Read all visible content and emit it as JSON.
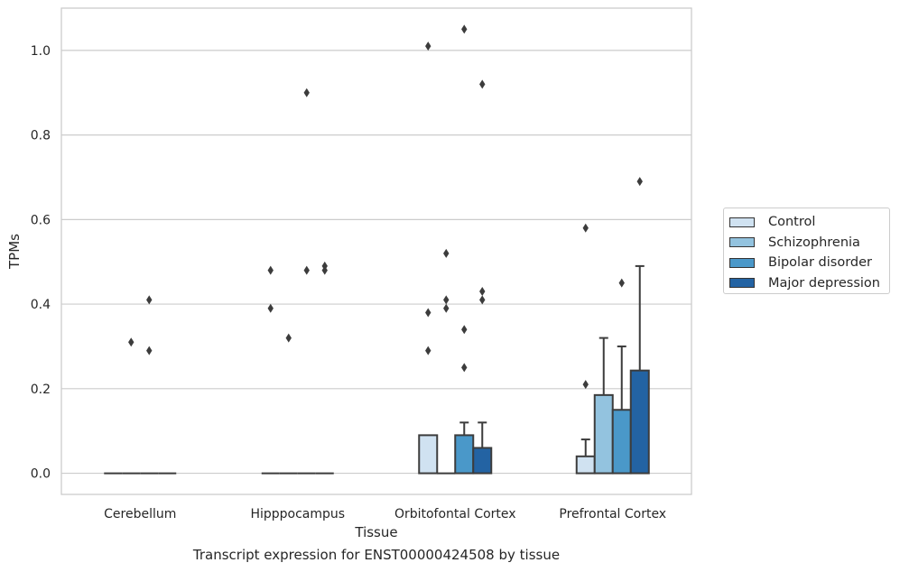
{
  "chart_data": {
    "type": "bar",
    "title": "",
    "caption": "Transcript expression for ENST00000424508 by tissue",
    "xlabel": "Tissue",
    "ylabel": "TPMs",
    "ylim": [
      -0.05,
      1.1
    ],
    "yticks": [
      0.0,
      0.2,
      0.4,
      0.6,
      0.8,
      1.0
    ],
    "ytick_labels": [
      "0.0",
      "0.2",
      "0.4",
      "0.6",
      "0.8",
      "1.0"
    ],
    "grid": "horizontal",
    "legend_position": "right",
    "categories": [
      "Cerebellum",
      "Hipppocampus",
      "Orbitofontal Cortex",
      "Prefrontal Cortex"
    ],
    "series": [
      {
        "name": "Control",
        "color": "#d0e2f1",
        "values": [
          0.0,
          0.0,
          0.09,
          0.04
        ],
        "whisker": [
          null,
          null,
          null,
          0.08
        ],
        "outliers": [
          [],
          [
            0.48,
            0.39
          ],
          [
            1.01,
            0.38,
            0.29
          ],
          [
            0.58,
            0.21
          ]
        ]
      },
      {
        "name": "Schizophrenia",
        "color": "#93c3df",
        "values": [
          0.0,
          0.0,
          0.0,
          0.185
        ],
        "whisker": [
          null,
          null,
          null,
          0.32
        ],
        "outliers": [
          [
            0.31
          ],
          [
            0.32
          ],
          [
            0.52,
            0.41,
            0.39
          ],
          []
        ]
      },
      {
        "name": "Bipolar disorder",
        "color": "#4a98c9",
        "values": [
          0.0,
          0.0,
          0.09,
          0.15
        ],
        "whisker": [
          null,
          null,
          0.12,
          0.3
        ],
        "outliers": [
          [
            0.41,
            0.29
          ],
          [
            0.9,
            0.48
          ],
          [
            1.05,
            0.34,
            0.25
          ],
          [
            0.45
          ]
        ]
      },
      {
        "name": "Major depression",
        "color": "#2363a3",
        "values": [
          0.0,
          0.0,
          0.06,
          0.243
        ],
        "whisker": [
          null,
          null,
          0.12,
          0.49
        ],
        "outliers": [
          [],
          [
            0.49,
            0.48
          ],
          [
            0.92,
            0.43,
            0.41
          ],
          [
            0.69
          ]
        ]
      }
    ]
  }
}
